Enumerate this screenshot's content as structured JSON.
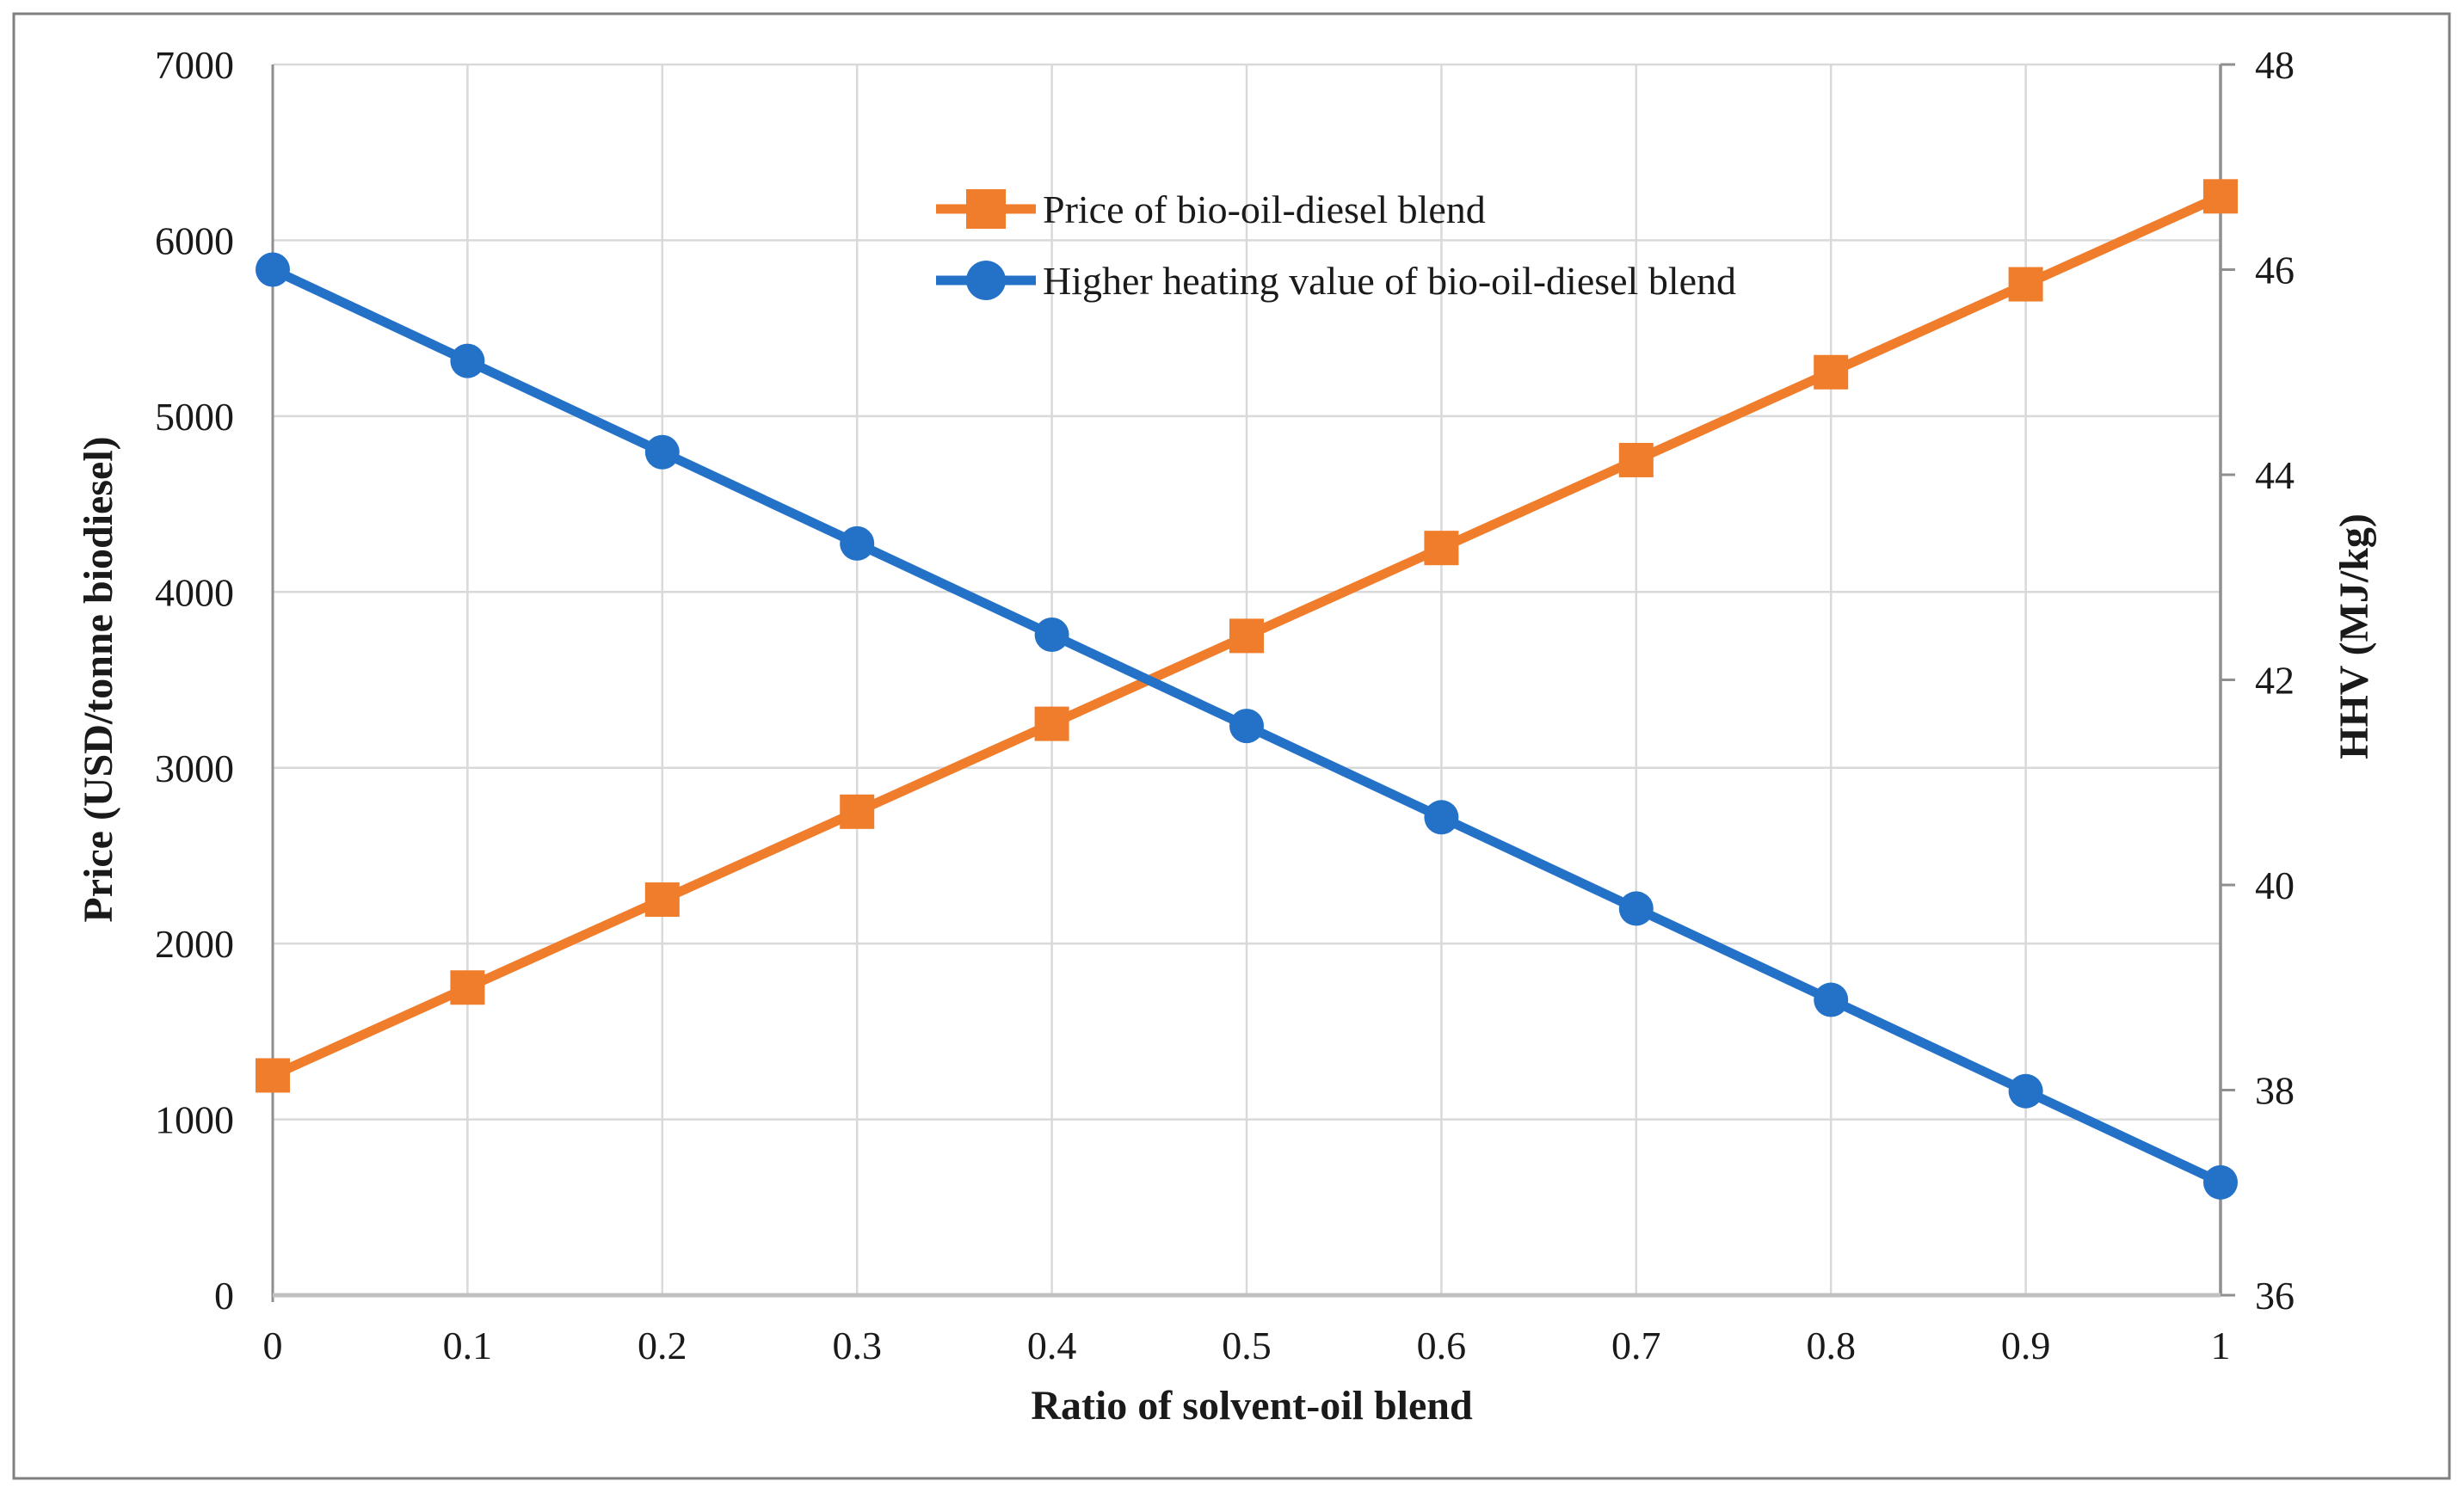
{
  "figure": {
    "background": "#ffffff",
    "frame_color": "#7f7f7f",
    "gridline_color": "#d9d9d9",
    "axis_line_color": "#8f8f8f",
    "bottom_axis_color": "#c0c0c0",
    "text_color": "#1a1a1a"
  },
  "chart_data": {
    "type": "line",
    "title": "",
    "xlabel": "Ratio of solvent-oil blend",
    "x": [
      0,
      0.1,
      0.2,
      0.3,
      0.4,
      0.5,
      0.6,
      0.7,
      0.8,
      0.9,
      1
    ],
    "x_tick_labels": [
      "0",
      "0.1",
      "0.2",
      "0.3",
      "0.4",
      "0.5",
      "0.6",
      "0.7",
      "0.8",
      "0.9",
      "1"
    ],
    "left_axis": {
      "label": "Price (USD/tonne biodiesel)",
      "min": 0,
      "max": 7000,
      "ticks": [
        0,
        1000,
        2000,
        3000,
        4000,
        5000,
        6000,
        7000
      ],
      "tick_labels": [
        "0",
        "1000",
        "2000",
        "3000",
        "4000",
        "5000",
        "6000",
        "7000"
      ]
    },
    "right_axis": {
      "label": "HHV (MJ/kg)",
      "min": 36,
      "max": 48,
      "ticks": [
        36,
        38,
        40,
        42,
        44,
        46,
        48
      ],
      "tick_labels": [
        "36",
        "38",
        "40",
        "42",
        "44",
        "46",
        "48"
      ]
    },
    "grid": true,
    "legend_position": "top-center-inside",
    "series": [
      {
        "name": "Price of bio-oil-diesel blend",
        "axis": "left",
        "color": "#f07d2b",
        "marker": "square",
        "values": [
          1250,
          1750,
          2250,
          2750,
          3250,
          3750,
          4250,
          4750,
          5250,
          5750,
          6250
        ]
      },
      {
        "name": "Higher heating value of bio-oil-diesel blend",
        "axis": "right",
        "color": "#2472c8",
        "marker": "circle",
        "values": [
          46.0,
          45.11,
          44.22,
          43.33,
          42.44,
          41.55,
          40.66,
          39.77,
          38.88,
          37.99,
          37.1
        ]
      }
    ]
  }
}
